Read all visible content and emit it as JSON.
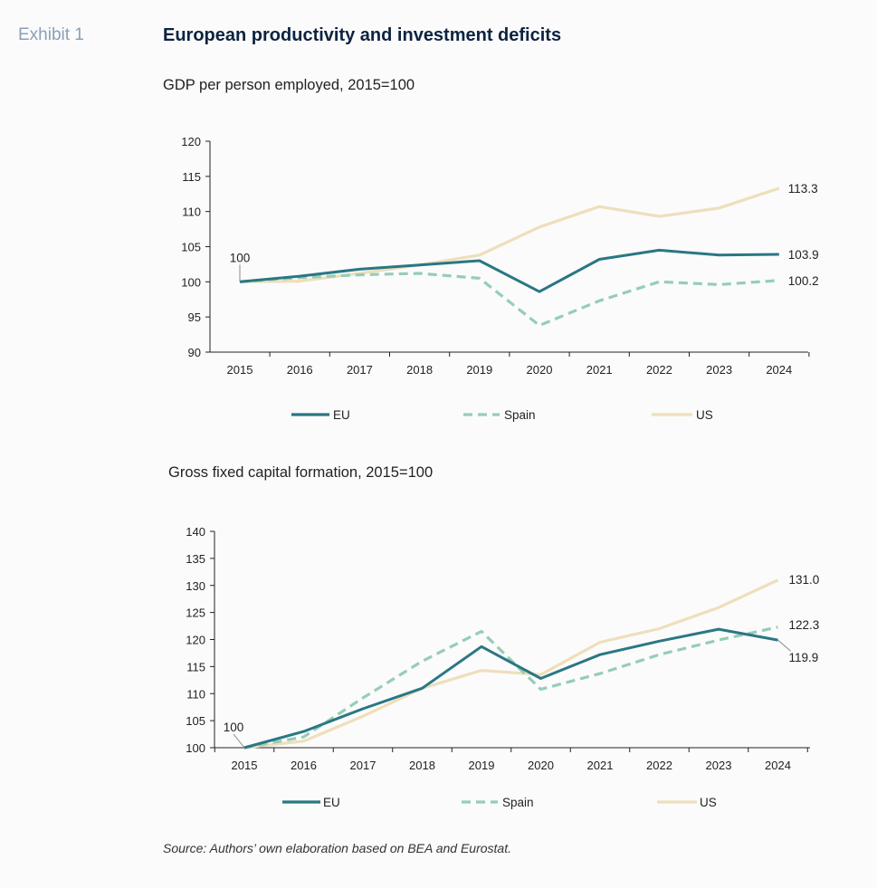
{
  "exhibit_label": "Exhibit 1",
  "title": "European productivity and investment deficits",
  "source": "Source: Authors’ own elaboration based on BEA and Eurostat.",
  "colors": {
    "EU": "#2a7784",
    "Spain": "#96cdb8",
    "US": "#eedfbb"
  },
  "chart_data": [
    {
      "type": "line",
      "title": "GDP per person employed, 2015=100",
      "xlabel": "",
      "ylabel": "",
      "categories": [
        "2015",
        "2016",
        "2017",
        "2018",
        "2019",
        "2020",
        "2021",
        "2022",
        "2023",
        "2024"
      ],
      "ylim": [
        90,
        120
      ],
      "yticks": [
        90,
        95,
        100,
        105,
        110,
        115,
        120
      ],
      "grid": false,
      "legend_position": "bottom",
      "series": [
        {
          "name": "EU",
          "style": "solid",
          "values": [
            100,
            100.8,
            101.8,
            102.4,
            103.0,
            98.6,
            103.2,
            104.5,
            103.8,
            103.9
          ]
        },
        {
          "name": "Spain",
          "style": "dashed",
          "values": [
            100,
            100.6,
            101.0,
            101.2,
            100.5,
            93.8,
            97.3,
            100.0,
            99.6,
            100.2
          ]
        },
        {
          "name": "US",
          "style": "solid",
          "values": [
            100,
            100.1,
            101.2,
            102.4,
            103.8,
            107.8,
            110.7,
            109.3,
            110.5,
            113.3
          ]
        }
      ],
      "annotations": [
        {
          "text": "100",
          "target": "2015 start"
        },
        {
          "text": "113.3",
          "series": "US"
        },
        {
          "text": "103.9",
          "series": "EU"
        },
        {
          "text": "100.2",
          "series": "Spain"
        }
      ]
    },
    {
      "type": "line",
      "title": "Gross fixed capital formation, 2015=100",
      "xlabel": "",
      "ylabel": "",
      "categories": [
        "2015",
        "2016",
        "2017",
        "2018",
        "2019",
        "2020",
        "2021",
        "2022",
        "2023",
        "2024"
      ],
      "ylim": [
        100,
        140
      ],
      "yticks": [
        100,
        105,
        110,
        115,
        120,
        125,
        130,
        135,
        140
      ],
      "grid": false,
      "legend_position": "bottom",
      "series": [
        {
          "name": "EU",
          "style": "solid",
          "values": [
            100,
            103.0,
            107.2,
            111.0,
            118.7,
            112.8,
            117.2,
            119.7,
            121.9,
            119.9
          ]
        },
        {
          "name": "Spain",
          "style": "dashed",
          "values": [
            100,
            102.0,
            109.2,
            116.0,
            121.5,
            110.8,
            113.7,
            117.2,
            119.9,
            122.3
          ]
        },
        {
          "name": "US",
          "style": "solid",
          "values": [
            100,
            101.2,
            105.8,
            111.0,
            114.3,
            113.5,
            119.5,
            122.0,
            125.9,
            131.0
          ]
        }
      ],
      "annotations": [
        {
          "text": "100",
          "target": "2015 start"
        },
        {
          "text": "131.0",
          "series": "US"
        },
        {
          "text": "122.3",
          "series": "Spain"
        },
        {
          "text": "119.9",
          "series": "EU"
        }
      ]
    }
  ]
}
